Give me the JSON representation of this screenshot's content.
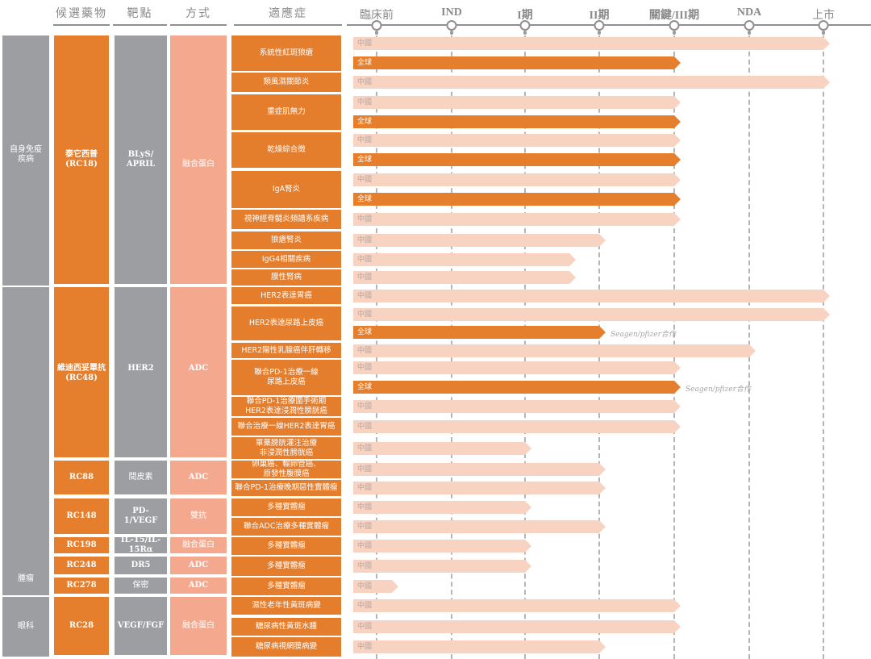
{
  "headers": {
    "candidate": "候選藥物",
    "target": "靶點",
    "modality": "方式",
    "indication": "適應症"
  },
  "chart_data": {
    "type": "pipeline",
    "title": "",
    "stages": [
      "臨床前",
      "IND",
      "I期",
      "II期",
      "關鍵/III期",
      "NDA",
      "上市"
    ],
    "progress_unit": "stage index (0 = 臨床前, 6 = 上市)",
    "therapeutic_areas": [
      {
        "name": "自身免疫\n疾病",
        "rows": [
          0,
          9
        ]
      },
      {
        "name": "腫瘤",
        "rows": [
          10,
          25
        ]
      },
      {
        "name": "眼科",
        "rows": [
          26,
          28
        ]
      }
    ],
    "candidates": [
      {
        "name": "泰它西普\n(RC18)",
        "target": "BLyS/\nAPRIL",
        "modality": "融合蛋白",
        "rows": [
          0,
          9
        ]
      },
      {
        "name": "維迪西妥單抗\n(RC48)",
        "target": "HER2",
        "modality": "ADC",
        "rows": [
          10,
          18
        ]
      },
      {
        "name": "RC88",
        "target": "間皮素",
        "modality": "ADC",
        "rows": [
          19,
          20
        ]
      },
      {
        "name": "RC148",
        "target": "PD-1/VEGF",
        "modality": "雙抗",
        "rows": [
          21,
          22
        ]
      },
      {
        "name": "RC198",
        "target": "IL-15/IL-\n15Rα",
        "modality": "融合蛋白",
        "rows": [
          23,
          23
        ]
      },
      {
        "name": "RC248",
        "target": "DR5",
        "modality": "ADC",
        "rows": [
          24,
          24
        ]
      },
      {
        "name": "RC278",
        "target": "保密",
        "modality": "ADC",
        "rows": [
          25,
          25
        ]
      },
      {
        "name": "RC28",
        "target": "VEGF/FGF",
        "modality": "融合蛋白",
        "rows": [
          26,
          28
        ]
      }
    ],
    "indications": [
      {
        "name": "系統性紅斑狼瘡",
        "bars": [
          {
            "region": "中國",
            "progress": 6.0
          },
          {
            "region": "全球",
            "progress": 4.0
          }
        ]
      },
      {
        "name": "類風濕關節炎",
        "bars": [
          {
            "region": "中國",
            "progress": 6.0
          }
        ]
      },
      {
        "name": "重症肌無力",
        "bars": [
          {
            "region": "中國",
            "progress": 4.0
          },
          {
            "region": "全球",
            "progress": 4.0
          }
        ]
      },
      {
        "name": "乾燥綜合徵",
        "bars": [
          {
            "region": "中國",
            "progress": 4.0
          },
          {
            "region": "全球",
            "progress": 4.0
          }
        ]
      },
      {
        "name": "IgA腎炎",
        "bars": [
          {
            "region": "中國",
            "progress": 4.0
          },
          {
            "region": "全球",
            "progress": 4.0
          }
        ]
      },
      {
        "name": "視神經脊髓炎頻譜系疾病",
        "bars": [
          {
            "region": "中國",
            "progress": 4.0
          }
        ]
      },
      {
        "name": "狼瘡腎炎",
        "bars": [
          {
            "region": "中國",
            "progress": 3.0
          }
        ]
      },
      {
        "name": "IgG4相關疾病",
        "bars": [
          {
            "region": "中國",
            "progress": 2.6
          }
        ]
      },
      {
        "name": "膜性腎病",
        "bars": [
          {
            "region": "中國",
            "progress": 2.6
          }
        ]
      },
      {
        "name": "HER2表達胃癌",
        "bars": [
          {
            "region": "中國",
            "progress": 6.0
          }
        ]
      },
      {
        "name": "HER2表達尿路上皮癌",
        "bars": [
          {
            "region": "中國",
            "progress": 6.0
          },
          {
            "region": "全球",
            "progress": 3.0,
            "note": "Seagen/pfizer合作"
          }
        ]
      },
      {
        "name": "HER2陽性乳腺癌伴肝轉移",
        "bars": [
          {
            "region": "中國",
            "progress": 5.0
          }
        ]
      },
      {
        "name": "聯合PD-1治療一線\n尿路上皮癌",
        "bars": [
          {
            "region": "中國",
            "progress": 4.0
          },
          {
            "region": "全球",
            "progress": 4.0,
            "note": "Seagen/pfizer合作"
          }
        ]
      },
      {
        "name": "聯合PD-1治療圍手術期\nHER2表達浸潤性膀胱癌",
        "bars": [
          {
            "region": "中國",
            "progress": 4.0
          }
        ]
      },
      {
        "name": "聯合治療一線HER2表達胃癌",
        "bars": [
          {
            "region": "中國",
            "progress": 4.0
          }
        ]
      },
      {
        "name": "單藥膀胱灌注治療\n非浸潤性膀胱癌",
        "bars": [
          {
            "region": "中國",
            "progress": 2.0
          }
        ]
      },
      {
        "name": "卵巢癌、輸卵管癌、\n原發性腹膜癌",
        "bars": [
          {
            "region": "中國",
            "progress": 3.0
          }
        ]
      },
      {
        "name": "聯合PD-1治療晚期惡性實體瘤",
        "bars": [
          {
            "region": "中國",
            "progress": 3.0
          }
        ]
      },
      {
        "name": "多種實體瘤",
        "bars": [
          {
            "region": "中國",
            "progress": 2.0
          }
        ]
      },
      {
        "name": "聯合ADC治療多種實體瘤",
        "bars": [
          {
            "region": "中國",
            "progress": 3.0
          }
        ]
      },
      {
        "name": "多種實體瘤",
        "bars": [
          {
            "region": "中國",
            "progress": 2.0
          }
        ]
      },
      {
        "name": "多種實體瘤",
        "bars": [
          {
            "region": "中國",
            "progress": 2.0
          }
        ]
      },
      {
        "name": "多種實體瘤",
        "bars": [
          {
            "region": "中國",
            "progress": 0.2
          }
        ]
      },
      {
        "name": "濕性老年性黃斑病變",
        "bars": [
          {
            "region": "中國",
            "progress": 4.0
          }
        ]
      },
      {
        "name": "糖尿病性黃斑水腫",
        "bars": [
          {
            "region": "中國",
            "progress": 4.0
          }
        ]
      },
      {
        "name": "糖尿病視網膜病變",
        "bars": [
          {
            "region": "中國",
            "progress": 3.0
          }
        ]
      }
    ]
  }
}
